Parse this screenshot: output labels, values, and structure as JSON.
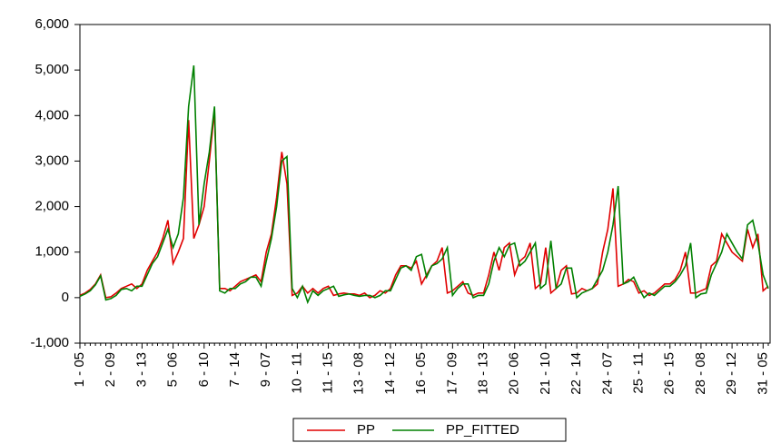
{
  "chart_data": {
    "type": "line",
    "categories": [
      "1 - 05",
      null,
      null,
      null,
      null,
      null,
      "2 - 09",
      null,
      null,
      null,
      null,
      null,
      "3 - 13",
      null,
      null,
      null,
      null,
      null,
      "5 - 06",
      null,
      null,
      null,
      null,
      null,
      "6 - 10",
      null,
      null,
      null,
      null,
      null,
      "7 - 14",
      null,
      null,
      null,
      null,
      null,
      "9 - 07",
      null,
      null,
      null,
      null,
      null,
      "10 - 11",
      null,
      null,
      null,
      null,
      null,
      "11 - 15",
      null,
      null,
      null,
      null,
      null,
      "13 - 08",
      null,
      null,
      null,
      null,
      null,
      "14 - 12",
      null,
      null,
      null,
      null,
      null,
      "16 - 05",
      null,
      null,
      null,
      null,
      null,
      "17 - 09",
      null,
      null,
      null,
      null,
      null,
      "18 - 13",
      null,
      null,
      null,
      null,
      null,
      "20 - 06",
      null,
      null,
      null,
      null,
      null,
      "21 - 10",
      null,
      null,
      null,
      null,
      null,
      "22 - 14",
      null,
      null,
      null,
      null,
      null,
      "24 - 07",
      null,
      null,
      null,
      null,
      null,
      "25 - 11",
      null,
      null,
      null,
      null,
      null,
      "26 - 15",
      null,
      null,
      null,
      null,
      null,
      "28 - 08",
      null,
      null,
      null,
      null,
      null,
      "29 - 12",
      null,
      null,
      null,
      null,
      null,
      "31 - 05",
      null
    ],
    "series": [
      {
        "name": "PP",
        "color": "#e00000",
        "values": [
          50,
          100,
          180,
          300,
          500,
          0,
          20,
          100,
          200,
          250,
          300,
          200,
          300,
          600,
          800,
          1000,
          1300,
          1700,
          750,
          1000,
          1300,
          3900,
          1300,
          1600,
          2000,
          3000,
          4100,
          200,
          200,
          150,
          250,
          350,
          400,
          450,
          500,
          350,
          1000,
          1400,
          2200,
          3200,
          2500,
          50,
          100,
          250,
          100,
          200,
          100,
          200,
          250,
          50,
          80,
          100,
          80,
          80,
          50,
          100,
          0,
          50,
          150,
          100,
          200,
          500,
          700,
          700,
          650,
          800,
          300,
          500,
          700,
          800,
          1100,
          100,
          150,
          250,
          350,
          100,
          50,
          100,
          100,
          500,
          1000,
          600,
          1100,
          1200,
          500,
          800,
          900,
          1200,
          200,
          300,
          1100,
          100,
          200,
          600,
          700,
          80,
          100,
          200,
          150,
          200,
          300,
          1000,
          1500,
          2400,
          250,
          300,
          400,
          350,
          100,
          150,
          50,
          100,
          200,
          300,
          300,
          400,
          600,
          1000,
          100,
          100,
          150,
          200,
          700,
          800,
          1400,
          1200,
          1000,
          900,
          800,
          1500,
          1100,
          1400,
          150,
          250
        ]
      },
      {
        "name": "PP_FITTED",
        "color": "#008000",
        "values": [
          30,
          80,
          150,
          280,
          480,
          -50,
          -20,
          50,
          180,
          200,
          150,
          250,
          250,
          500,
          750,
          900,
          1200,
          1500,
          1100,
          1400,
          2200,
          4200,
          5100,
          1600,
          2500,
          3200,
          4200,
          150,
          100,
          200,
          200,
          300,
          350,
          450,
          450,
          250,
          800,
          1300,
          2000,
          3000,
          3100,
          200,
          0,
          250,
          -100,
          150,
          50,
          150,
          200,
          250,
          30,
          60,
          80,
          50,
          30,
          50,
          50,
          0,
          50,
          150,
          150,
          400,
          650,
          700,
          600,
          900,
          950,
          450,
          700,
          750,
          850,
          1100,
          50,
          200,
          300,
          300,
          0,
          50,
          50,
          300,
          800,
          1100,
          900,
          1150,
          1200,
          700,
          800,
          1000,
          1200,
          200,
          300,
          1250,
          200,
          300,
          650,
          650,
          0,
          100,
          150,
          200,
          400,
          600,
          1000,
          1600,
          2450,
          300,
          350,
          450,
          200,
          0,
          100,
          50,
          150,
          250,
          250,
          350,
          500,
          700,
          1200,
          0,
          80,
          100,
          500,
          750,
          1000,
          1400,
          1200,
          1000,
          850,
          1600,
          1700,
          1200,
          500,
          200
        ]
      }
    ],
    "ylim": [
      -1000,
      6000
    ],
    "yticks": [
      {
        "value": -1000,
        "label": "-1,000"
      },
      0,
      {
        "value": 1000,
        "label": "1,000"
      },
      {
        "value": 2000,
        "label": "2,000"
      },
      {
        "value": 3000,
        "label": "3,000"
      },
      {
        "value": 4000,
        "label": "4,000"
      },
      {
        "value": 5000,
        "label": "5,000"
      },
      {
        "value": 6000,
        "label": "6,000"
      }
    ],
    "grid": false
  }
}
